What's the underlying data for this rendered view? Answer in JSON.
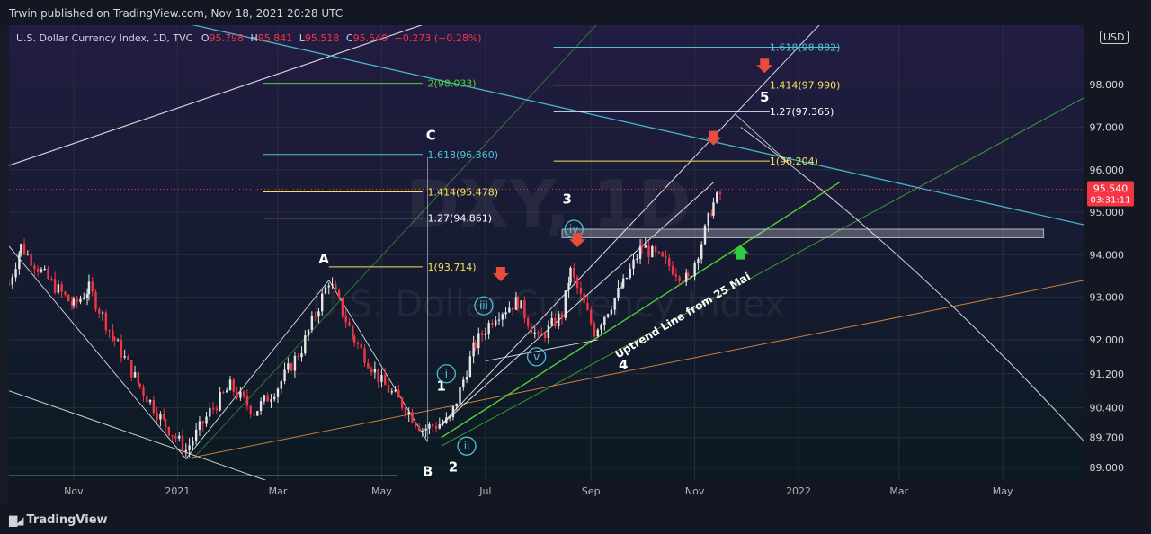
{
  "header": {
    "published": "Trwin published on TradingView.com, Nov 18, 2021 20:28 UTC"
  },
  "legend": {
    "symbol": "U.S. Dollar Currency Index, 1D, TVC",
    "open_label": "O",
    "open": "95.798",
    "high_label": "H",
    "high": "95.841",
    "low_label": "L",
    "low": "95.518",
    "close_label": "C",
    "close": "95.540",
    "change": "−0.273 (−0.28%)"
  },
  "currency_button": "USD",
  "watermark": {
    "big": "DXY, 1D",
    "small": "U.S. Dollar Currency Index"
  },
  "footer": {
    "brand": "TradingView"
  },
  "colors": {
    "background_top": "#1e1b3a",
    "background_bottom": "#0d1a24",
    "up": "#e6e6e6",
    "down": "#f23645",
    "cyan": "#4dc3d6",
    "yellow": "#f5e15a",
    "green": "#4cd137",
    "orange": "#e08a3c",
    "arrow_red": "#e74c3c",
    "arrow_green": "#2ecc40"
  },
  "chart_data": {
    "type": "candlestick",
    "title": "U.S. Dollar Currency Index, 1D, TVC",
    "x_ticks": [
      "Nov",
      "2021",
      "Mar",
      "May",
      "Jul",
      "Sep",
      "Nov",
      "2022",
      "Mar",
      "May"
    ],
    "x_tick_dates": [
      "2020-11-01",
      "2021-01-01",
      "2021-03-01",
      "2021-05-01",
      "2021-07-01",
      "2021-09-01",
      "2021-11-01",
      "2022-01-01",
      "2022-03-01",
      "2022-05-01"
    ],
    "y_ticks": [
      "89.000",
      "89.700",
      "90.400",
      "91.200",
      "92.000",
      "93.000",
      "94.000",
      "95.000",
      "96.000",
      "97.000",
      "98.000"
    ],
    "y_range": [
      88.7,
      99.4
    ],
    "x_range": [
      "2020-09-24",
      "2022-06-18"
    ],
    "last_price": {
      "value": "95.540",
      "countdown": "03:31:11"
    },
    "series": [
      {
        "name": "DXY",
        "points": [
          [
            "2020-09-24",
            93.3
          ],
          [
            "2020-10-01",
            94.2
          ],
          [
            "2020-10-15",
            93.5
          ],
          [
            "2020-11-01",
            92.8
          ],
          [
            "2020-11-10",
            93.2
          ],
          [
            "2020-11-25",
            92.0
          ],
          [
            "2020-12-10",
            90.9
          ],
          [
            "2020-12-25",
            90.0
          ],
          [
            "2021-01-06",
            89.4
          ],
          [
            "2021-01-20",
            90.3
          ],
          [
            "2021-02-01",
            90.9
          ],
          [
            "2021-02-15",
            90.3
          ],
          [
            "2021-03-01",
            90.9
          ],
          [
            "2021-03-15",
            91.8
          ],
          [
            "2021-03-31",
            93.4
          ],
          [
            "2021-04-15",
            92.0
          ],
          [
            "2021-05-01",
            91.0
          ],
          [
            "2021-05-15",
            90.4
          ],
          [
            "2021-05-25",
            89.9
          ],
          [
            "2021-06-10",
            90.1
          ],
          [
            "2021-06-25",
            91.9
          ],
          [
            "2021-07-07",
            92.6
          ],
          [
            "2021-07-20",
            92.9
          ],
          [
            "2021-08-01",
            92.0
          ],
          [
            "2021-08-15",
            92.6
          ],
          [
            "2021-08-20",
            93.6
          ],
          [
            "2021-09-03",
            92.2
          ],
          [
            "2021-09-20",
            93.3
          ],
          [
            "2021-10-01",
            94.2
          ],
          [
            "2021-10-15",
            93.8
          ],
          [
            "2021-10-28",
            93.4
          ],
          [
            "2021-11-05",
            94.3
          ],
          [
            "2021-11-12",
            95.2
          ],
          [
            "2021-11-18",
            95.54
          ]
        ]
      }
    ],
    "fib_levels": [
      {
        "label": "2(98.033)",
        "value": 98.033,
        "color": "green"
      },
      {
        "label": "1.618(96.360)",
        "value": 96.36,
        "color": "cyan"
      },
      {
        "label": "1.414(95.478)",
        "value": 95.478,
        "color": "yellow"
      },
      {
        "label": "1.27(94.861)",
        "value": 94.861,
        "color": "white"
      },
      {
        "label": "1(93.714)",
        "value": 93.714,
        "color": "yellow"
      },
      {
        "label": "1.618(98.882)",
        "value": 98.882,
        "color": "cyan"
      },
      {
        "label": "1.414(97.990)",
        "value": 97.99,
        "color": "yellow"
      },
      {
        "label": "1.27(97.365)",
        "value": 97.365,
        "color": "white"
      },
      {
        "label": "1(96.204)",
        "value": 96.204,
        "color": "yellow"
      }
    ],
    "wave_labels_plain": [
      "A",
      "B",
      "C",
      "1",
      "2",
      "3",
      "4",
      "5"
    ],
    "wave_labels_circled": [
      "i",
      "ii",
      "iii",
      "iv",
      "v"
    ],
    "annotation": "Uptrend Line from 25 Mai",
    "grid": true
  }
}
